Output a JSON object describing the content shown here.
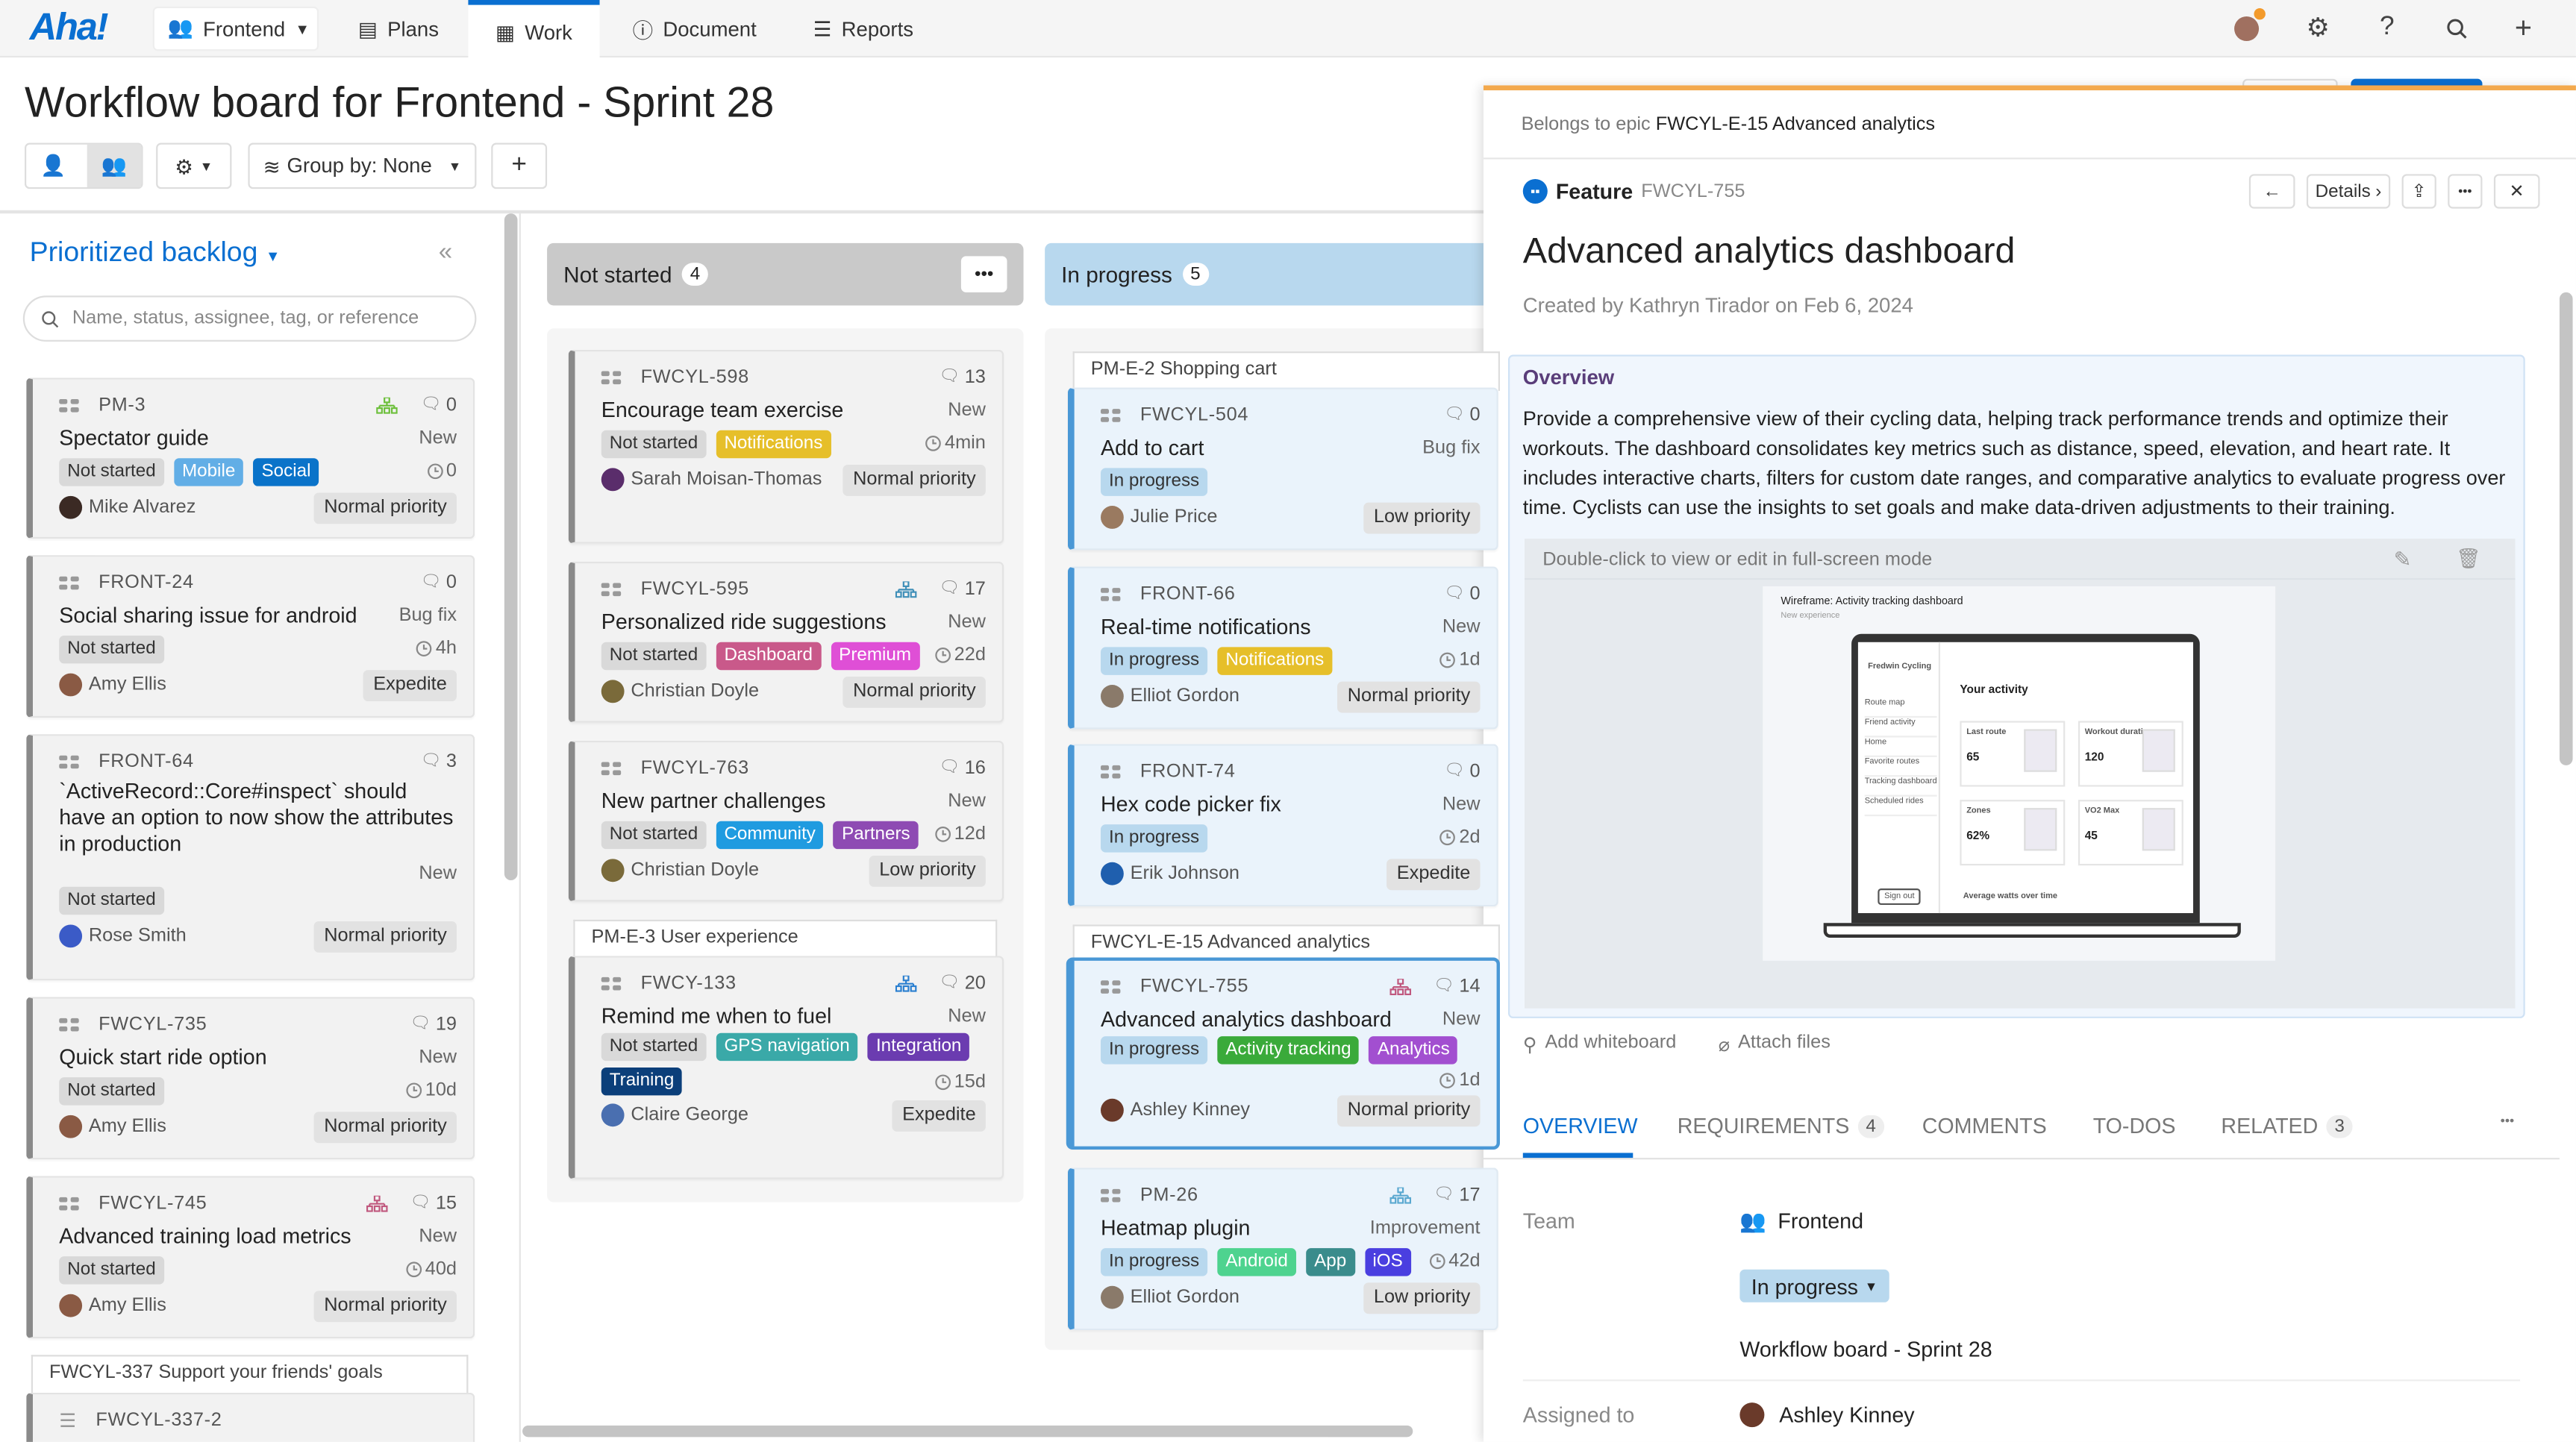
{
  "topbar": {
    "logo": "Aha!",
    "team": "Frontend",
    "tabs": [
      {
        "label": "Plans"
      },
      {
        "label": "Work"
      },
      {
        "label": "Document"
      },
      {
        "label": "Reports"
      }
    ],
    "active_tab": "Work",
    "notification_color": "#f39a2b"
  },
  "page": {
    "title": "Workflow board for Frontend - Sprint 28"
  },
  "toolbar": {
    "group_by": "Group by: None",
    "add": "+"
  },
  "backlog": {
    "title": "Prioritized backlog",
    "search_placeholder": "Name, status, assignee, tag, or reference",
    "cards": [
      {
        "id": "PM-3",
        "title": "Spectator guide",
        "type": "New",
        "status": "Not started",
        "tags": [
          {
            "label": "Mobile",
            "color": "#62aee6"
          },
          {
            "label": "Social",
            "color": "#0a73c9"
          }
        ],
        "estimate": "0",
        "assignee": "Mike Alvarez",
        "priority": "Normal priority",
        "comments": "0",
        "hierarchy_color": "#6cbf3a",
        "avatar": "#3b2a24"
      },
      {
        "id": "FRONT-24",
        "title": "Social sharing issue for android",
        "type": "Bug fix",
        "status": "Not started",
        "tags": [],
        "estimate": "4h",
        "assignee": "Amy Ellis",
        "priority": "Expedite",
        "comments": "0",
        "avatar": "#8a5a44"
      },
      {
        "id": "FRONT-64",
        "title": "`ActiveRecord::Core#inspect` should have an option to now show the attributes in production",
        "type": "New",
        "status": "Not started",
        "tags": [],
        "assignee": "Rose Smith",
        "priority": "Normal priority",
        "comments": "3",
        "avatar": "#3b5bc7"
      },
      {
        "id": "FWCYL-735",
        "title": "Quick start ride option",
        "type": "New",
        "status": "Not started",
        "tags": [],
        "estimate": "10d",
        "assignee": "Amy Ellis",
        "priority": "Normal priority",
        "comments": "19",
        "avatar": "#8a5a44"
      },
      {
        "id": "FWCYL-745",
        "title": "Advanced training load metrics",
        "type": "New",
        "status": "Not started",
        "tags": [],
        "estimate": "40d",
        "assignee": "Amy Ellis",
        "priority": "Normal priority",
        "comments": "15",
        "hierarchy_color": "#c0587e",
        "avatar": "#8a5a44"
      }
    ],
    "epic_group": {
      "label": "FWCYL-337 Support your friends' goals",
      "cards": [
        {
          "id": "FWCYL-337-2"
        }
      ]
    }
  },
  "columns": [
    {
      "name": "Not started",
      "count": "4",
      "groups": [
        {
          "epic": null,
          "cards": [
            {
              "id": "FWCYL-598",
              "title": "Encourage team exercise",
              "type": "New",
              "status": "Not started",
              "tags": [
                {
                  "label": "Notifications",
                  "color": "#e6bf2a"
                }
              ],
              "estimate": "4min",
              "assignee": "Sarah Moisan-Thomas",
              "priority": "Normal priority",
              "comments": "13",
              "avatar": "#5a2d6b"
            },
            {
              "id": "FWCYL-595",
              "title": "Personalized ride suggestions",
              "type": "New",
              "status": "Not started",
              "tags": [
                {
                  "label": "Dashboard",
                  "color": "#c9598a"
                },
                {
                  "label": "Premium",
                  "color": "#df4fd6"
                }
              ],
              "estimate": "22d",
              "assignee": "Christian Doyle",
              "priority": "Normal priority",
              "comments": "17",
              "hierarchy_color": "#3f8fb8",
              "avatar": "#7a6a3a"
            },
            {
              "id": "FWCYL-763",
              "title": "New partner challenges",
              "type": "New",
              "status": "Not started",
              "tags": [
                {
                  "label": "Community",
                  "color": "#1f9be0"
                },
                {
                  "label": "Partners",
                  "color": "#8e4bb3"
                }
              ],
              "estimate": "12d",
              "assignee": "Christian Doyle",
              "priority": "Low priority",
              "comments": "16",
              "avatar": "#7a6a3a"
            }
          ]
        },
        {
          "epic": "PM-E-3 User experience",
          "cards": [
            {
              "id": "FWCY-133",
              "title": "Remind me when to fuel",
              "type": "New",
              "status": "Not started",
              "tags": [
                {
                  "label": "GPS navigation",
                  "color": "#3aa9a8"
                },
                {
                  "label": "Integration",
                  "color": "#6b3cb0"
                },
                {
                  "label": "Training",
                  "color": "#0b3f7a"
                }
              ],
              "estimate": "15d",
              "assignee": "Claire George",
              "priority": "Expedite",
              "comments": "20",
              "hierarchy_color": "#2a7fd0",
              "avatar": "#4a6fb0"
            }
          ]
        }
      ]
    },
    {
      "name": "In progress",
      "count": "5",
      "groups": [
        {
          "epic": "PM-E-2 Shopping cart",
          "cards": [
            {
              "id": "FWCYL-504",
              "title": "Add to cart",
              "type": "Bug fix",
              "status": "In progress",
              "tags": [],
              "assignee": "Julie Price",
              "priority": "Low priority",
              "comments": "0",
              "avatar": "#9a7a60"
            },
            {
              "id": "FRONT-66",
              "title": "Real-time notifications",
              "type": "New",
              "status": "In progress",
              "tags": [
                {
                  "label": "Notifications",
                  "color": "#e6bf2a"
                }
              ],
              "estimate": "1d",
              "assignee": "Elliot Gordon",
              "priority": "Normal priority",
              "comments": "0",
              "avatar": "#8a7a6a"
            },
            {
              "id": "FRONT-74",
              "title": "Hex code picker fix",
              "type": "New",
              "status": "In progress",
              "tags": [],
              "estimate": "2d",
              "assignee": "Erik Johnson",
              "priority": "Expedite",
              "comments": "0",
              "avatar": "#1f5fae"
            }
          ]
        },
        {
          "epic": "FWCYL-E-15 Advanced analytics",
          "cards": [
            {
              "id": "FWCYL-755",
              "title": "Advanced analytics dashboard",
              "type": "New",
              "status": "In progress",
              "tags": [
                {
                  "label": "Activity tracking",
                  "color": "#3aaa3a"
                },
                {
                  "label": "Analytics",
                  "color": "#a24fd0"
                }
              ],
              "estimate": "1d",
              "assignee": "Ashley Kinney",
              "priority": "Normal priority",
              "comments": "14",
              "hierarchy_color": "#c0587e",
              "avatar": "#6a3a2a",
              "selected": true
            },
            {
              "id": "PM-26",
              "title": "Heatmap plugin",
              "type": "Improvement",
              "status": "In progress",
              "tags": [
                {
                  "label": "Android",
                  "color": "#4ed38f"
                },
                {
                  "label": "App",
                  "color": "#3a8c8c"
                },
                {
                  "label": "iOS",
                  "color": "#4a3fe0"
                }
              ],
              "estimate": "42d",
              "assignee": "Elliot Gordon",
              "priority": "Low priority",
              "comments": "17",
              "hierarchy_color": "#5aa8d0",
              "avatar": "#8a7a6a"
            }
          ]
        }
      ]
    }
  ],
  "detail": {
    "epic_prefix": "Belongs to epic",
    "epic": "FWCYL-E-15 Advanced analytics",
    "kind": "Feature",
    "ref": "FWCYL-755",
    "details_button": "Details",
    "title": "Advanced analytics dashboard",
    "created": "Created by Kathryn Tirador on Feb 6, 2024",
    "overview_heading": "Overview",
    "overview_text": "Provide a comprehensive view of their cycling data, helping track performance trends and optimize their workouts. The dashboard consolidates key metrics such as distance, speed, elevation, and heart rate. It includes interactive charts, filters for custom date ranges, and comparative analytics to evaluate progress over time. Cyclists can use the insights to set goals and make data-driven adjustments to their training.",
    "whiteboard_hint": "Double-click to view or edit in full-screen mode",
    "wireframe": {
      "title": "Wireframe: Activity tracking dashboard",
      "subtitle": "New experience",
      "app": "Fredwin Cycling",
      "heading": "Your activity",
      "nav": [
        "Route map",
        "Friend activity",
        "Home",
        "Favorite routes",
        "Tracking dashboard",
        "Scheduled rides"
      ],
      "metrics": [
        {
          "label": "Last route",
          "value": "65"
        },
        {
          "label": "Workout duration",
          "value": "120"
        },
        {
          "label": "Zones",
          "value": "62%"
        },
        {
          "label": "VO2 Max",
          "value": "45"
        }
      ],
      "chart_label": "Average watts over time",
      "sign_out": "Sign out"
    },
    "add_whiteboard": "Add whiteboard",
    "attach_files": "Attach files",
    "tabs": [
      {
        "label": "OVERVIEW"
      },
      {
        "label": "REQUIREMENTS",
        "badge": "4"
      },
      {
        "label": "COMMENTS"
      },
      {
        "label": "TO-DOS"
      },
      {
        "label": "RELATED",
        "badge": "3"
      }
    ],
    "fields": {
      "team_label": "Team",
      "team": "Frontend",
      "status": "In progress",
      "release": "Workflow board - Sprint 28",
      "assigned_label": "Assigned to",
      "assigned": "Ashley Kinney"
    }
  }
}
